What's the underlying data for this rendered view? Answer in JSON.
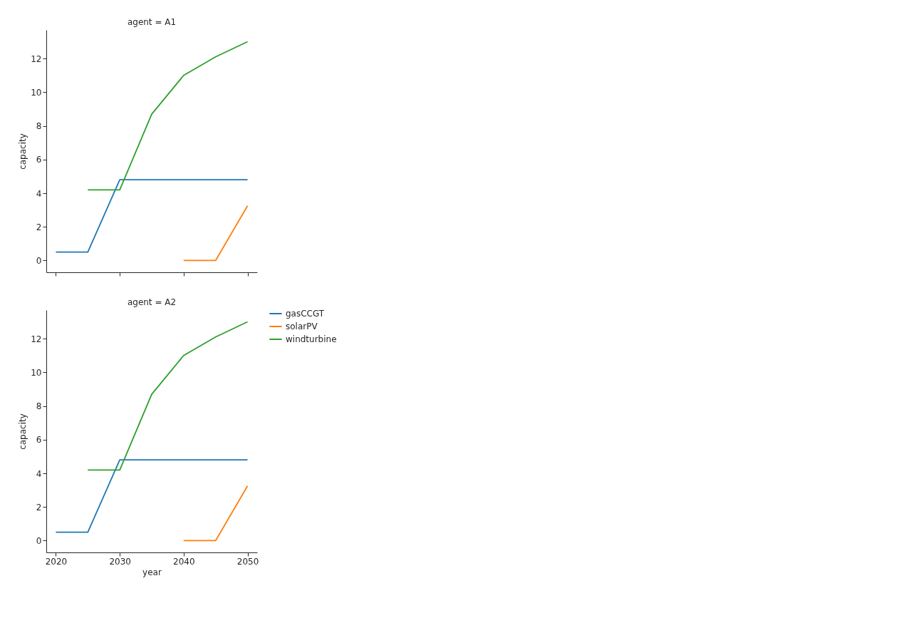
{
  "chart_data": [
    {
      "type": "line",
      "title": "agent = A1",
      "ylabel": "capacity",
      "xlim": [
        2018.5,
        2051.5
      ],
      "xticks": [
        2020,
        2030,
        2040,
        2050
      ],
      "ylim": [
        -0.7,
        13.7
      ],
      "yticks": [
        0,
        2,
        4,
        6,
        8,
        10,
        12
      ],
      "grid": false,
      "legend": "right",
      "tick_labels": "y",
      "series": [
        {
          "name": "gasCCGT",
          "color": "#1f77b4",
          "x": [
            2020,
            2025,
            2030,
            2035,
            2040,
            2045,
            2050
          ],
          "values": [
            0.5,
            0.5,
            4.8,
            4.8,
            4.8,
            4.8,
            4.8
          ]
        },
        {
          "name": "solarPV",
          "color": "#ff7f0e",
          "x": [
            2040,
            2045,
            2050
          ],
          "values": [
            0,
            0,
            3.25
          ]
        },
        {
          "name": "windturbine",
          "color": "#2ca02c",
          "x": [
            2025,
            2030,
            2035,
            2040,
            2045,
            2050
          ],
          "values": [
            4.2,
            4.2,
            8.7,
            11,
            12.1,
            13
          ]
        }
      ]
    },
    {
      "type": "line",
      "title": "agent = A2",
      "xlabel": "year",
      "ylabel": "capacity",
      "xlim": [
        2018.5,
        2051.5
      ],
      "xticks": [
        2020,
        2030,
        2040,
        2050
      ],
      "ylim": [
        -0.7,
        13.7
      ],
      "yticks": [
        0,
        2,
        4,
        6,
        8,
        10,
        12
      ],
      "grid": false,
      "series": [
        {
          "name": "gasCCGT",
          "color": "#1f77b4",
          "x": [
            2020,
            2025,
            2030,
            2035,
            2040,
            2045,
            2050
          ],
          "values": [
            0.5,
            0.5,
            4.8,
            4.8,
            4.8,
            4.8,
            4.8
          ]
        },
        {
          "name": "solarPV",
          "color": "#ff7f0e",
          "x": [
            2040,
            2045,
            2050
          ],
          "values": [
            0,
            0,
            3.25
          ]
        },
        {
          "name": "windturbine",
          "color": "#2ca02c",
          "x": [
            2025,
            2030,
            2035,
            2040,
            2045,
            2050
          ],
          "values": [
            4.2,
            4.2,
            8.7,
            11,
            12.1,
            13
          ]
        }
      ]
    }
  ]
}
